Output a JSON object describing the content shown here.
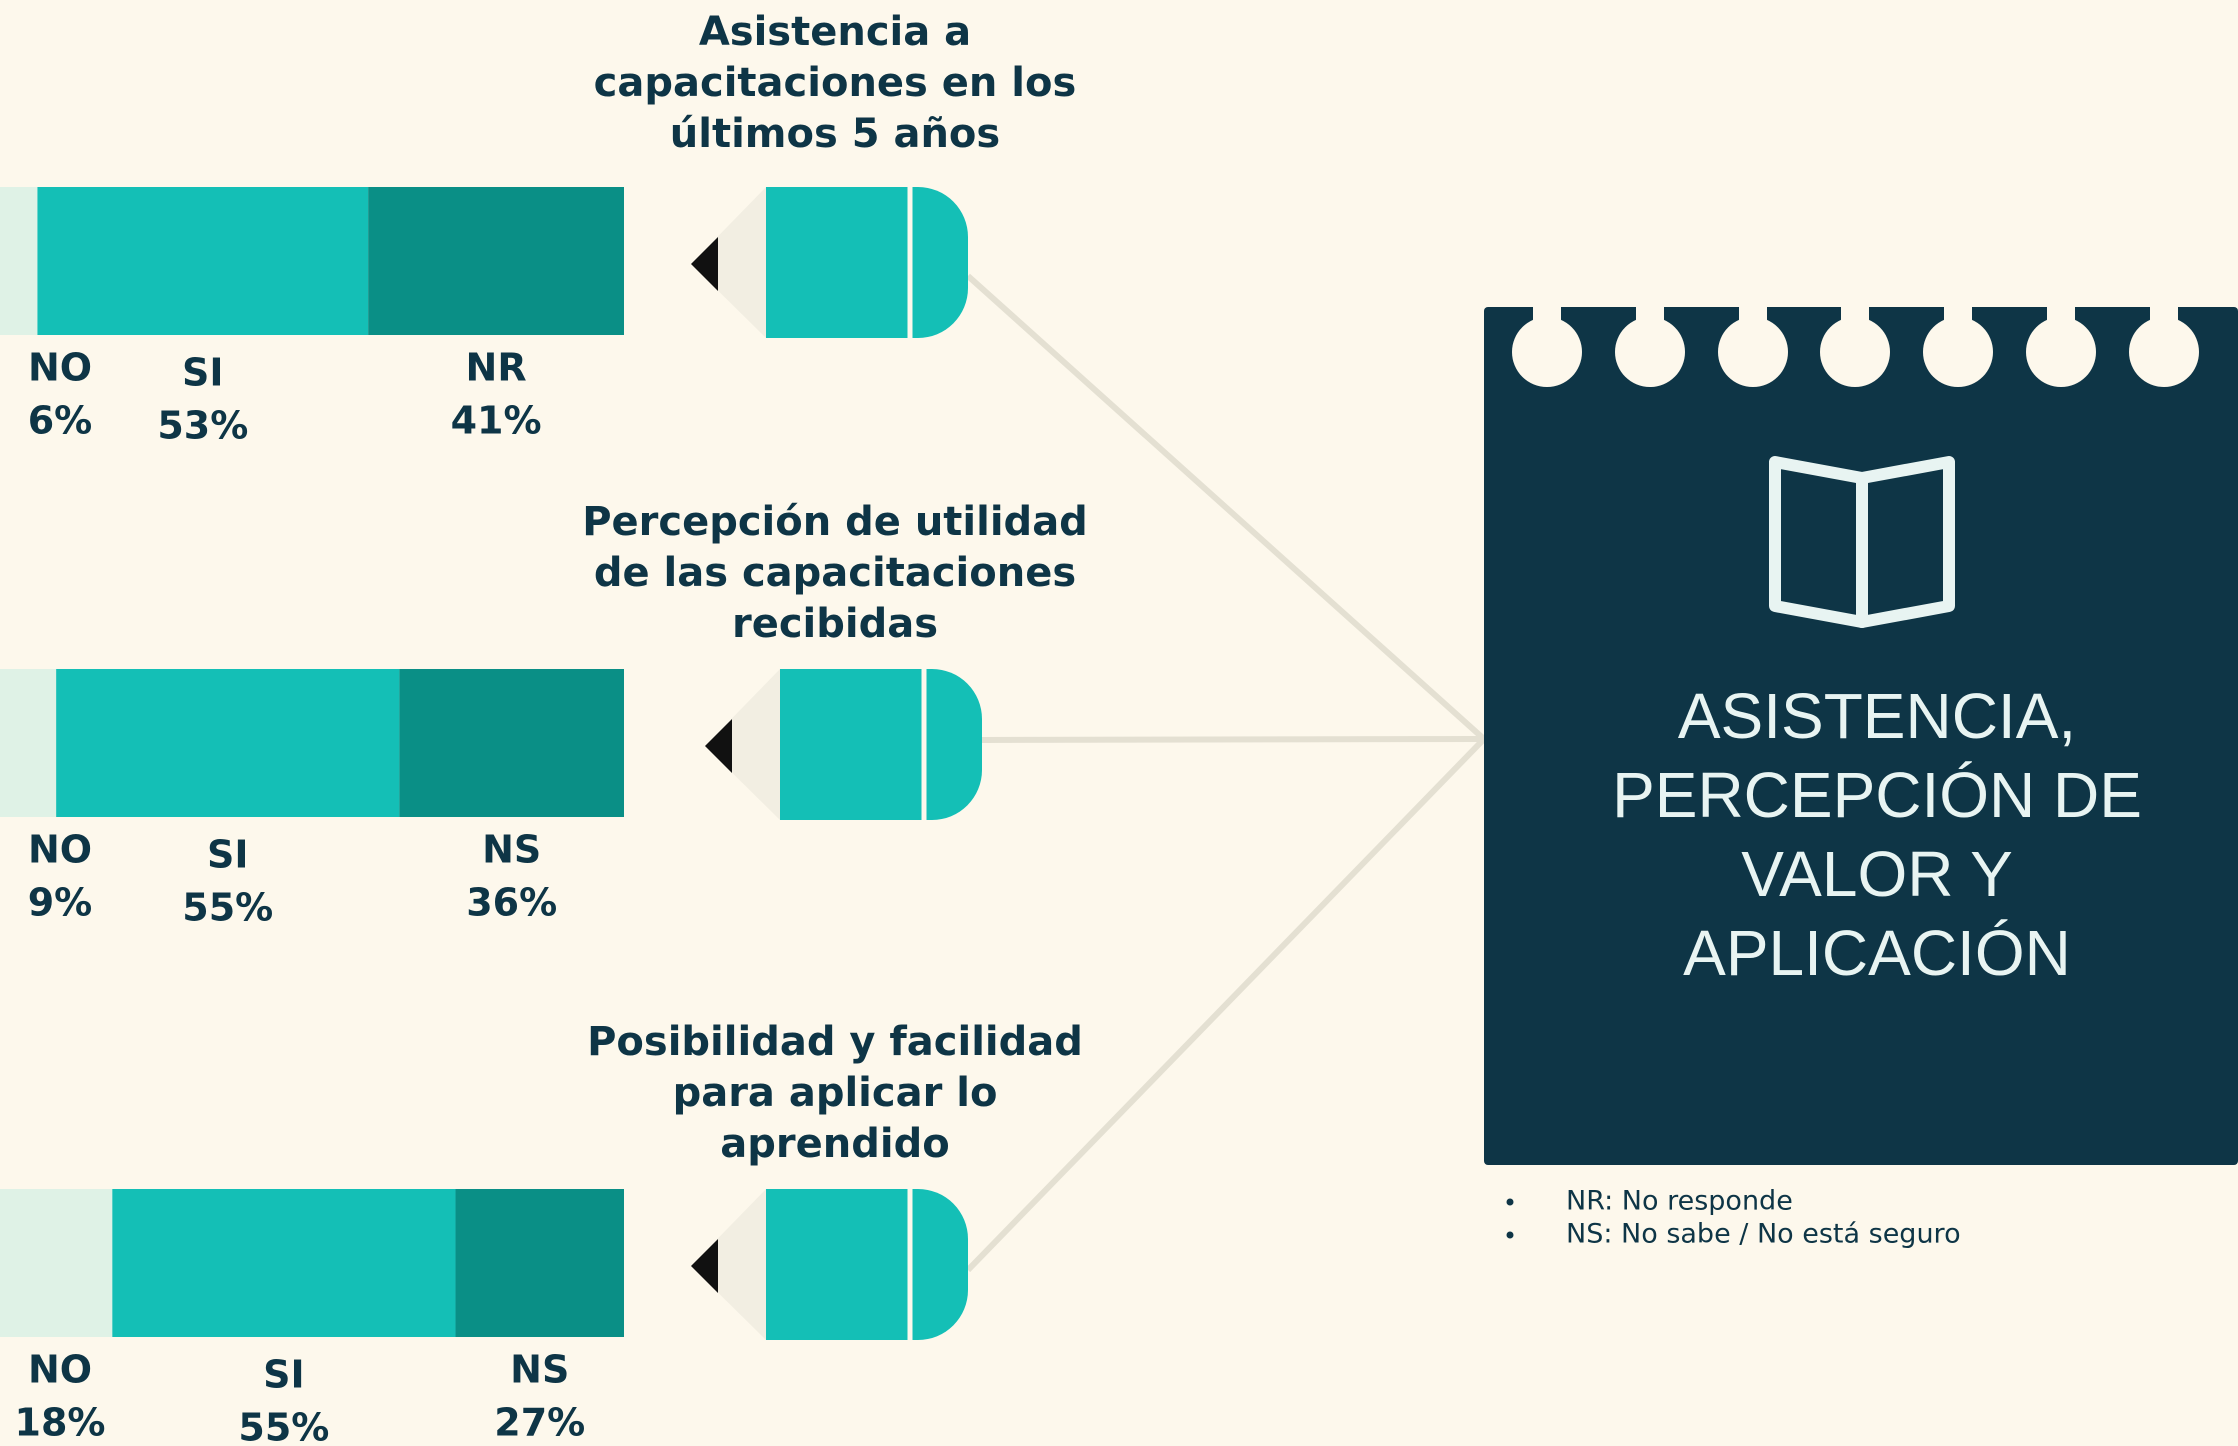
{
  "chart_data": [
    {
      "type": "bar",
      "title": [
        "Asistencia a",
        "capacitaciones en los",
        "últimos 5 años"
      ],
      "categories": [
        "NO",
        "SI",
        "NR"
      ],
      "values": [
        6,
        53,
        41
      ],
      "value_labels": [
        "6%",
        "53%",
        "41%"
      ],
      "colors": [
        "#dff2e6",
        "#14bfb6",
        "#0a8f86"
      ]
    },
    {
      "type": "bar",
      "title": [
        "Percepción de utilidad",
        "de las capacitaciones",
        "recibidas"
      ],
      "categories": [
        "NO",
        "SI",
        "NS"
      ],
      "values": [
        9,
        55,
        36
      ],
      "value_labels": [
        "9%",
        "55%",
        "36%"
      ],
      "colors": [
        "#dff2e6",
        "#14bfb6",
        "#0a8f86"
      ]
    },
    {
      "type": "bar",
      "title": [
        "Posibilidad y facilidad",
        "para aplicar lo",
        "aprendido"
      ],
      "categories": [
        "NO",
        "SI",
        "NS"
      ],
      "values": [
        18,
        55,
        27
      ],
      "value_labels": [
        "18%",
        "55%",
        "27%"
      ],
      "colors": [
        "#dff2e6",
        "#14bfb6",
        "#0a8f86"
      ]
    }
  ],
  "notebook_title": [
    "ASISTENCIA,",
    "PERCEPCIÓN DE",
    "VALOR Y",
    "APLICACIÓN"
  ],
  "notes": [
    "NR: No responde",
    "NS: No sabe  / No está seguro"
  ]
}
